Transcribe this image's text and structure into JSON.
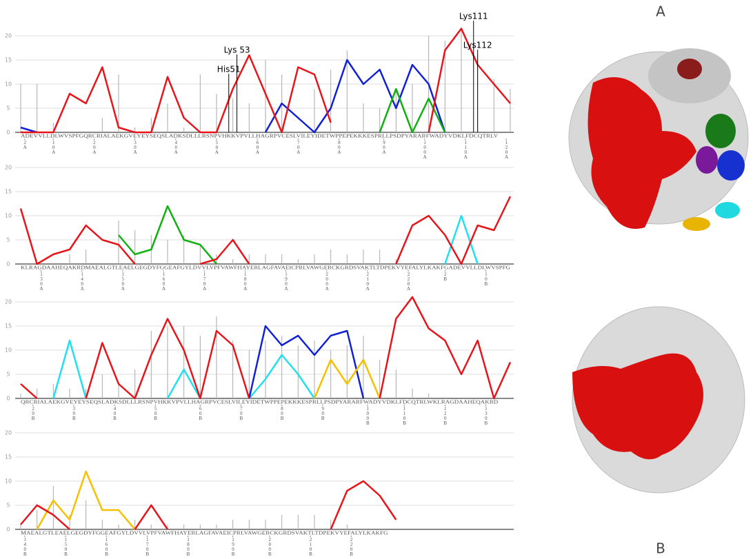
{
  "chart_data": [
    {
      "type": "line",
      "xlim": [
        0,
        120
      ],
      "ylim": [
        0,
        20
      ],
      "yticks": [
        0,
        5,
        10,
        15,
        20
      ],
      "grid": true,
      "sequence": "ADEVVLLDLWVSPFGQRCRIALAEKGVEYEYSEQSLADKSDLLLRSNPVHKKVPVLLHAGRPVCESLVILEYIDETWPPEPEKKKESPRLLPSDPYARARFWADYVDKLFDCQTRLV",
      "xticks": [
        {
          "value": 1,
          "label": "2A"
        },
        {
          "value": 8,
          "label": "10A"
        },
        {
          "value": 18,
          "label": "20A"
        },
        {
          "value": 28,
          "label": "30A"
        },
        {
          "value": 38,
          "label": "40A"
        },
        {
          "value": 48,
          "label": "50A"
        },
        {
          "value": 58,
          "label": "60A"
        },
        {
          "value": 68,
          "label": "70A"
        },
        {
          "value": 78,
          "label": "80A"
        },
        {
          "value": 89,
          "label": "90A"
        },
        {
          "value": 99,
          "label": "100A"
        },
        {
          "value": 109,
          "label": "110A"
        },
        {
          "value": 119,
          "label": "120A"
        }
      ],
      "x": [
        0,
        4,
        8,
        12,
        16,
        20,
        24,
        28,
        32,
        36,
        40,
        44,
        48,
        52,
        56,
        60,
        64,
        68,
        72,
        76,
        80,
        84,
        88,
        92,
        96,
        100,
        104,
        108,
        112,
        116,
        120
      ],
      "spikes": {
        "color": "#aaaaaa",
        "values": [
          10,
          10,
          2,
          0,
          0,
          3,
          12,
          1,
          3,
          6,
          1,
          12,
          8,
          7,
          6,
          15,
          12,
          0,
          9,
          13,
          17,
          6,
          5,
          9,
          10,
          20,
          19,
          21,
          16,
          11,
          9
        ]
      },
      "series": [
        {
          "color": "#1020d8",
          "values": [
            1,
            0,
            null,
            null,
            null,
            null,
            null,
            null,
            null,
            null,
            null,
            null,
            null,
            null,
            null,
            0,
            6,
            3,
            0,
            5,
            15,
            10,
            13,
            5,
            14,
            10,
            0,
            null,
            null,
            null,
            null
          ]
        },
        {
          "color": "#10b010",
          "values": [
            null,
            null,
            null,
            null,
            null,
            null,
            null,
            null,
            null,
            null,
            null,
            null,
            null,
            null,
            null,
            null,
            null,
            null,
            null,
            null,
            null,
            null,
            0,
            9,
            0,
            7,
            0,
            null,
            null,
            null,
            null
          ]
        },
        {
          "color": "#e8141a",
          "values": [
            0,
            0,
            0,
            8,
            6,
            13.5,
            1,
            0,
            0,
            11.5,
            3,
            0,
            0,
            9,
            16,
            8,
            0,
            13.5,
            12,
            2,
            null,
            null,
            null,
            null,
            null,
            0,
            17,
            21.5,
            14,
            10,
            6
          ]
        }
      ],
      "annotations": [
        {
          "text": "His51",
          "x": 51,
          "y": 13
        },
        {
          "text": "Lys 53",
          "x": 53,
          "y": 17
        },
        {
          "text": "Lys111",
          "x": 111,
          "y": 24
        },
        {
          "text": "Lys112",
          "x": 112,
          "y": 18
        }
      ]
    },
    {
      "type": "line",
      "xlim": [
        0,
        120
      ],
      "ylim": [
        0,
        20
      ],
      "yticks": [
        0,
        5,
        10,
        15,
        20
      ],
      "grid": true,
      "sequence": "KLRAGDAAHEQAKRDMAEALGTLEAELGEGDYFGGEAFGYLDVVLVPFVAWFHAYERLAGFAVAEICPRLVAWGERCKGRDSVAKTLTDPEKVYEFALYLKAKFGADEVVLLDLWVSPFG",
      "xticks": [
        {
          "value": 5,
          "label": "130A"
        },
        {
          "value": 15,
          "label": "140A"
        },
        {
          "value": 25,
          "label": "150A"
        },
        {
          "value": 35,
          "label": "160A"
        },
        {
          "value": 45,
          "label": "170A"
        },
        {
          "value": 55,
          "label": "180A"
        },
        {
          "value": 65,
          "label": "190A"
        },
        {
          "value": 75,
          "label": "200A"
        },
        {
          "value": 85,
          "label": "210A"
        },
        {
          "value": 95,
          "label": "220A"
        },
        {
          "value": 104,
          "label": "2B"
        },
        {
          "value": 114,
          "label": "10B"
        }
      ],
      "x": [
        0,
        4,
        8,
        12,
        16,
        20,
        24,
        28,
        32,
        36,
        40,
        44,
        48,
        52,
        56,
        60,
        64,
        68,
        72,
        76,
        80,
        84,
        88,
        92,
        96,
        100,
        104,
        108,
        112,
        116,
        120
      ],
      "spikes": {
        "color": "#aaaaaa",
        "values": [
          0,
          0,
          0,
          2,
          3,
          0,
          9,
          7,
          6,
          5,
          6,
          4,
          2,
          1,
          2,
          2,
          2,
          1,
          2,
          3,
          2,
          3,
          3,
          1,
          0,
          0,
          0,
          0,
          0,
          0,
          0
        ]
      },
      "series": [
        {
          "color": "#10b010",
          "values": [
            null,
            null,
            null,
            null,
            null,
            null,
            6,
            2,
            3,
            12,
            5,
            4,
            0,
            null,
            null,
            null,
            null,
            null,
            null,
            null,
            null,
            null,
            null,
            null,
            null,
            null,
            null,
            null,
            null,
            null,
            null
          ]
        },
        {
          "color": "#20e0f0",
          "values": [
            null,
            null,
            null,
            null,
            null,
            null,
            null,
            null,
            null,
            null,
            null,
            null,
            null,
            null,
            null,
            null,
            null,
            null,
            null,
            null,
            null,
            null,
            null,
            null,
            null,
            null,
            0,
            10,
            0,
            null,
            null
          ]
        },
        {
          "color": "#e8141a",
          "values": [
            11.5,
            0,
            2,
            3,
            8,
            5,
            4,
            0,
            null,
            null,
            null,
            0,
            1,
            5,
            0,
            null,
            null,
            null,
            null,
            null,
            null,
            null,
            null,
            0,
            8,
            10,
            6,
            0,
            8,
            7,
            14
          ]
        }
      ]
    },
    {
      "type": "line",
      "xlim": [
        0,
        120
      ],
      "ylim": [
        0,
        20
      ],
      "yticks": [
        0,
        5,
        10,
        15,
        20
      ],
      "grid": true,
      "sequence": "QRCRIALAEKGVEYEYSEQSLADKSDLLLRSNPVHKKVPVLLHAGRPVCESLVILEYIDETWPPEPEKKKESPRLLPSDPYARARFWADYVDKLFDCQTRLWKLRAGDAAHEQAKRD",
      "xticks": [
        {
          "value": 3,
          "label": "20B"
        },
        {
          "value": 13,
          "label": "30B"
        },
        {
          "value": 23,
          "label": "40B"
        },
        {
          "value": 33,
          "label": "50B"
        },
        {
          "value": 44,
          "label": "60B"
        },
        {
          "value": 54,
          "label": "70B"
        },
        {
          "value": 64,
          "label": "80B"
        },
        {
          "value": 74,
          "label": "90B"
        },
        {
          "value": 85,
          "label": "100B"
        },
        {
          "value": 94,
          "label": "110B"
        },
        {
          "value": 104,
          "label": "120B"
        },
        {
          "value": 114,
          "label": "130B"
        }
      ],
      "x": [
        0,
        4,
        8,
        12,
        16,
        20,
        24,
        28,
        32,
        36,
        40,
        44,
        48,
        52,
        56,
        60,
        64,
        68,
        72,
        76,
        80,
        84,
        88,
        92,
        96,
        100,
        104,
        108,
        112,
        116,
        120
      ],
      "spikes": {
        "color": "#aaaaaa",
        "values": [
          1,
          2,
          3,
          2,
          2,
          5,
          3,
          6,
          14,
          15,
          15,
          13,
          17,
          12,
          10,
          12,
          13,
          11,
          12,
          10,
          11,
          13,
          8,
          6,
          2,
          1,
          0,
          0,
          0,
          0,
          0
        ]
      },
      "series": [
        {
          "color": "#20e0f0",
          "values": [
            null,
            null,
            0,
            12,
            0,
            null,
            null,
            null,
            null,
            0,
            6,
            0,
            null,
            null,
            0,
            4,
            9,
            5,
            0,
            null,
            null,
            null,
            null,
            null,
            null,
            null,
            null,
            null,
            null,
            null,
            null
          ]
        },
        {
          "color": "#1020d8",
          "values": [
            null,
            null,
            null,
            null,
            null,
            null,
            null,
            null,
            null,
            null,
            null,
            null,
            null,
            null,
            0,
            15,
            11,
            13,
            9,
            13,
            14,
            0,
            null,
            null,
            null,
            null,
            null,
            null,
            null,
            null,
            null
          ]
        },
        {
          "color": "#f5c000",
          "values": [
            null,
            null,
            null,
            null,
            null,
            null,
            null,
            null,
            null,
            null,
            null,
            null,
            null,
            null,
            null,
            null,
            null,
            null,
            0,
            8,
            3,
            8,
            0,
            null,
            null,
            null,
            null,
            null,
            null,
            null,
            null
          ]
        },
        {
          "color": "#e8141a",
          "values": [
            3,
            0,
            null,
            null,
            0,
            11.5,
            3,
            0,
            9,
            16.5,
            10,
            0,
            14,
            11,
            0,
            null,
            null,
            null,
            null,
            null,
            null,
            null,
            0,
            16.5,
            21,
            14.5,
            12,
            5,
            12,
            0,
            7.5
          ]
        }
      ]
    },
    {
      "type": "line",
      "xlim": [
        0,
        120
      ],
      "ylim": [
        0,
        20
      ],
      "yticks": [
        0,
        5,
        10,
        15,
        20
      ],
      "grid": true,
      "sequence": "MAEALGTLEAELGEGDYFGGEAFGYLDVVLVPFVAWFHAYERLAGFAVAEICPRLVAWGERCKGRDSVAKTLTDPEKVYEFALYLKAKFG",
      "xticks": [
        {
          "value": 1,
          "label": "140B"
        },
        {
          "value": 11,
          "label": "150B"
        },
        {
          "value": 21,
          "label": "160B"
        },
        {
          "value": 31,
          "label": "170B"
        },
        {
          "value": 41,
          "label": "180B"
        },
        {
          "value": 52,
          "label": "190B"
        },
        {
          "value": 61,
          "label": "200B"
        },
        {
          "value": 71,
          "label": "210B"
        },
        {
          "value": 81,
          "label": "220B"
        }
      ],
      "x": [
        0,
        4,
        8,
        12,
        16,
        20,
        24,
        28,
        32,
        36,
        40,
        44,
        48,
        52,
        56,
        60,
        64,
        68,
        72,
        76,
        80,
        84,
        88,
        92,
        96,
        100,
        104,
        108,
        112,
        116,
        120
      ],
      "spikes": {
        "color": "#aaaaaa",
        "values": [
          1,
          4,
          9,
          3,
          6,
          2,
          1,
          2,
          1,
          1,
          1,
          1,
          1,
          2,
          2,
          2,
          3,
          3,
          3,
          2,
          1,
          0,
          0,
          0,
          0,
          0,
          0,
          0,
          0,
          0,
          0
        ]
      },
      "series": [
        {
          "color": "#f5c000",
          "values": [
            null,
            0,
            6,
            2,
            12,
            4,
            4,
            0,
            null,
            null,
            null,
            null,
            null,
            null,
            null,
            null,
            null,
            null,
            null,
            null,
            null,
            null,
            null,
            null,
            null,
            null,
            null,
            null,
            null,
            null,
            null
          ]
        },
        {
          "color": "#e8141a",
          "values": [
            1,
            5,
            3,
            0,
            null,
            null,
            null,
            0,
            5,
            0,
            null,
            null,
            null,
            null,
            null,
            null,
            null,
            null,
            null,
            0,
            8,
            10,
            7,
            2,
            null,
            null,
            null,
            null,
            null,
            null,
            null
          ]
        }
      ]
    }
  ],
  "panel_labels": {
    "a": "A",
    "b": "B"
  }
}
